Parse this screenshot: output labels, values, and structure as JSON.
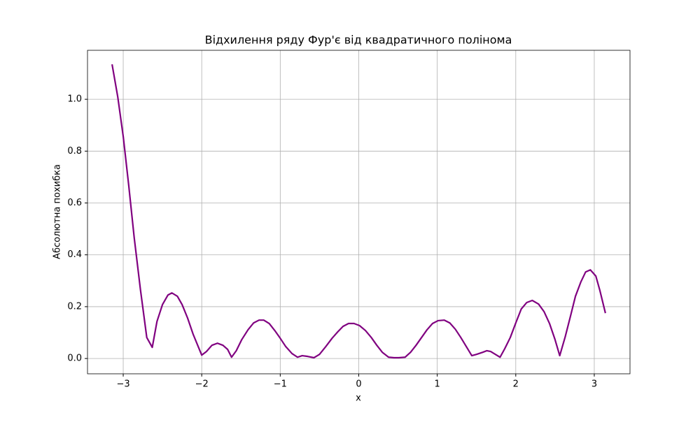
{
  "chart_data": {
    "type": "line",
    "title": "Відхилення ряду Фур'є від квадратичного полінома",
    "x_label": "x",
    "y_label": "Абсолютна похибка",
    "x": [
      -3.142,
      -3.07,
      -3.0,
      -2.93,
      -2.86,
      -2.78,
      -2.7,
      -2.63,
      -2.57,
      -2.5,
      -2.43,
      -2.38,
      -2.31,
      -2.25,
      -2.18,
      -2.11,
      -2.0,
      -1.94,
      -1.87,
      -1.8,
      -1.73,
      -1.67,
      -1.62,
      -1.56,
      -1.49,
      -1.41,
      -1.34,
      -1.27,
      -1.21,
      -1.14,
      -1.07,
      -1.0,
      -0.93,
      -0.85,
      -0.78,
      -0.72,
      -0.65,
      -0.57,
      -0.5,
      -0.42,
      -0.34,
      -0.27,
      -0.2,
      -0.13,
      -0.06,
      0.01,
      0.085,
      0.16,
      0.23,
      0.3,
      0.38,
      0.45,
      0.51,
      0.59,
      0.66,
      0.73,
      0.8,
      0.87,
      0.94,
      1.01,
      1.09,
      1.16,
      1.23,
      1.3,
      1.37,
      1.44,
      1.5,
      1.58,
      1.63,
      1.68,
      1.74,
      1.8,
      1.86,
      1.93,
      2.0,
      2.07,
      2.14,
      2.21,
      2.29,
      2.36,
      2.43,
      2.5,
      2.56,
      2.63,
      2.7,
      2.76,
      2.83,
      2.89,
      2.95,
      3.02,
      3.07,
      3.142
    ],
    "series": [
      {
        "name": "Абсолютна похибка",
        "color": "#800080",
        "values": [
          1.135,
          1.01,
          0.857,
          0.668,
          0.466,
          0.264,
          0.081,
          0.043,
          0.143,
          0.208,
          0.245,
          0.253,
          0.24,
          0.208,
          0.156,
          0.094,
          0.013,
          0.027,
          0.051,
          0.059,
          0.051,
          0.035,
          0.005,
          0.03,
          0.073,
          0.111,
          0.137,
          0.148,
          0.148,
          0.135,
          0.108,
          0.078,
          0.046,
          0.019,
          0.005,
          0.011,
          0.008,
          0.003,
          0.016,
          0.046,
          0.078,
          0.102,
          0.124,
          0.135,
          0.135,
          0.127,
          0.108,
          0.081,
          0.051,
          0.024,
          0.005,
          0.003,
          0.003,
          0.005,
          0.024,
          0.051,
          0.081,
          0.111,
          0.135,
          0.146,
          0.148,
          0.137,
          0.113,
          0.081,
          0.046,
          0.011,
          0.016,
          0.024,
          0.03,
          0.027,
          0.016,
          0.005,
          0.038,
          0.081,
          0.137,
          0.191,
          0.216,
          0.224,
          0.21,
          0.181,
          0.135,
          0.073,
          0.011,
          0.084,
          0.167,
          0.24,
          0.296,
          0.334,
          0.342,
          0.318,
          0.264,
          0.175
        ]
      }
    ],
    "xlim": [
      -3.455,
      3.455
    ],
    "ylim": [
      -0.059,
      1.189
    ],
    "xticks": [
      {
        "value": -3,
        "label": "−3"
      },
      {
        "value": -2,
        "label": "−2"
      },
      {
        "value": -1,
        "label": "−1"
      },
      0,
      1,
      2,
      3
    ],
    "yticks": [
      {
        "value": 0,
        "label": "0.0"
      },
      0.2,
      0.4,
      0.6,
      0.8,
      {
        "value": 1,
        "label": "1.0"
      }
    ],
    "grid": true
  }
}
